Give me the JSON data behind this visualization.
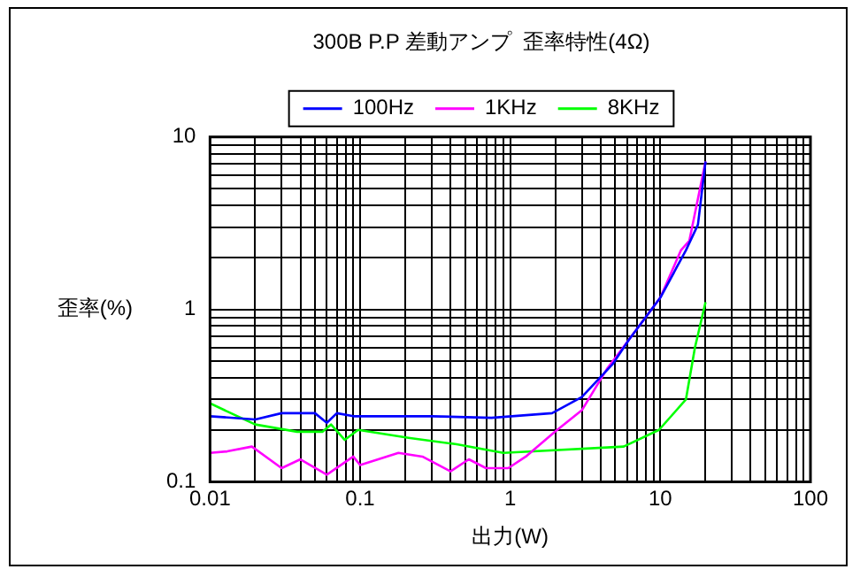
{
  "chart_data": {
    "type": "line",
    "title": "300B P.P 差動アンプ  歪率特性(4Ω)",
    "xlabel": "出力(W)",
    "ylabel": "歪率(%)",
    "log": "xy",
    "grid": true,
    "legend": "top",
    "marker": "none",
    "line_style": "solid",
    "xlim": [
      0.01,
      100
    ],
    "xticks": [
      0.01,
      0.1,
      1,
      10,
      100
    ],
    "ylim": [
      0.1,
      10
    ],
    "yticks": [
      0.1,
      1,
      10
    ],
    "series": [
      {
        "name": "100Hz",
        "color": "#0000ff",
        "x": [
          0.01,
          0.02,
          0.03,
          0.05,
          0.06,
          0.07,
          0.09,
          0.3,
          0.75,
          1.9,
          3.0,
          4.8,
          6.2,
          10,
          14.8,
          17.8,
          20
        ],
        "values": [
          0.24,
          0.23,
          0.25,
          0.25,
          0.22,
          0.25,
          0.24,
          0.24,
          0.235,
          0.25,
          0.31,
          0.48,
          0.67,
          1.17,
          2.2,
          3.1,
          7.2
        ]
      },
      {
        "name": "1KHz",
        "color": "#ff00ff",
        "x": [
          0.01,
          0.013,
          0.019,
          0.03,
          0.04,
          0.06,
          0.09,
          0.1,
          0.18,
          0.26,
          0.4,
          0.53,
          0.69,
          0.97,
          1.27,
          1.98,
          3.0,
          4.4,
          6.2,
          10,
          13.7,
          15.6,
          20
        ],
        "values": [
          0.147,
          0.15,
          0.16,
          0.12,
          0.135,
          0.11,
          0.14,
          0.125,
          0.147,
          0.14,
          0.115,
          0.135,
          0.12,
          0.12,
          0.14,
          0.195,
          0.26,
          0.45,
          0.67,
          1.17,
          2.2,
          2.5,
          7.2
        ]
      },
      {
        "name": "8KHz",
        "color": "#00ff00",
        "x": [
          0.01,
          0.02,
          0.038,
          0.056,
          0.064,
          0.079,
          0.097,
          0.21,
          0.44,
          0.9,
          5.7,
          9.8,
          14.8,
          17,
          20
        ],
        "values": [
          0.285,
          0.215,
          0.195,
          0.195,
          0.215,
          0.175,
          0.2,
          0.18,
          0.165,
          0.147,
          0.16,
          0.2,
          0.3,
          0.6,
          1.1
        ]
      }
    ]
  }
}
